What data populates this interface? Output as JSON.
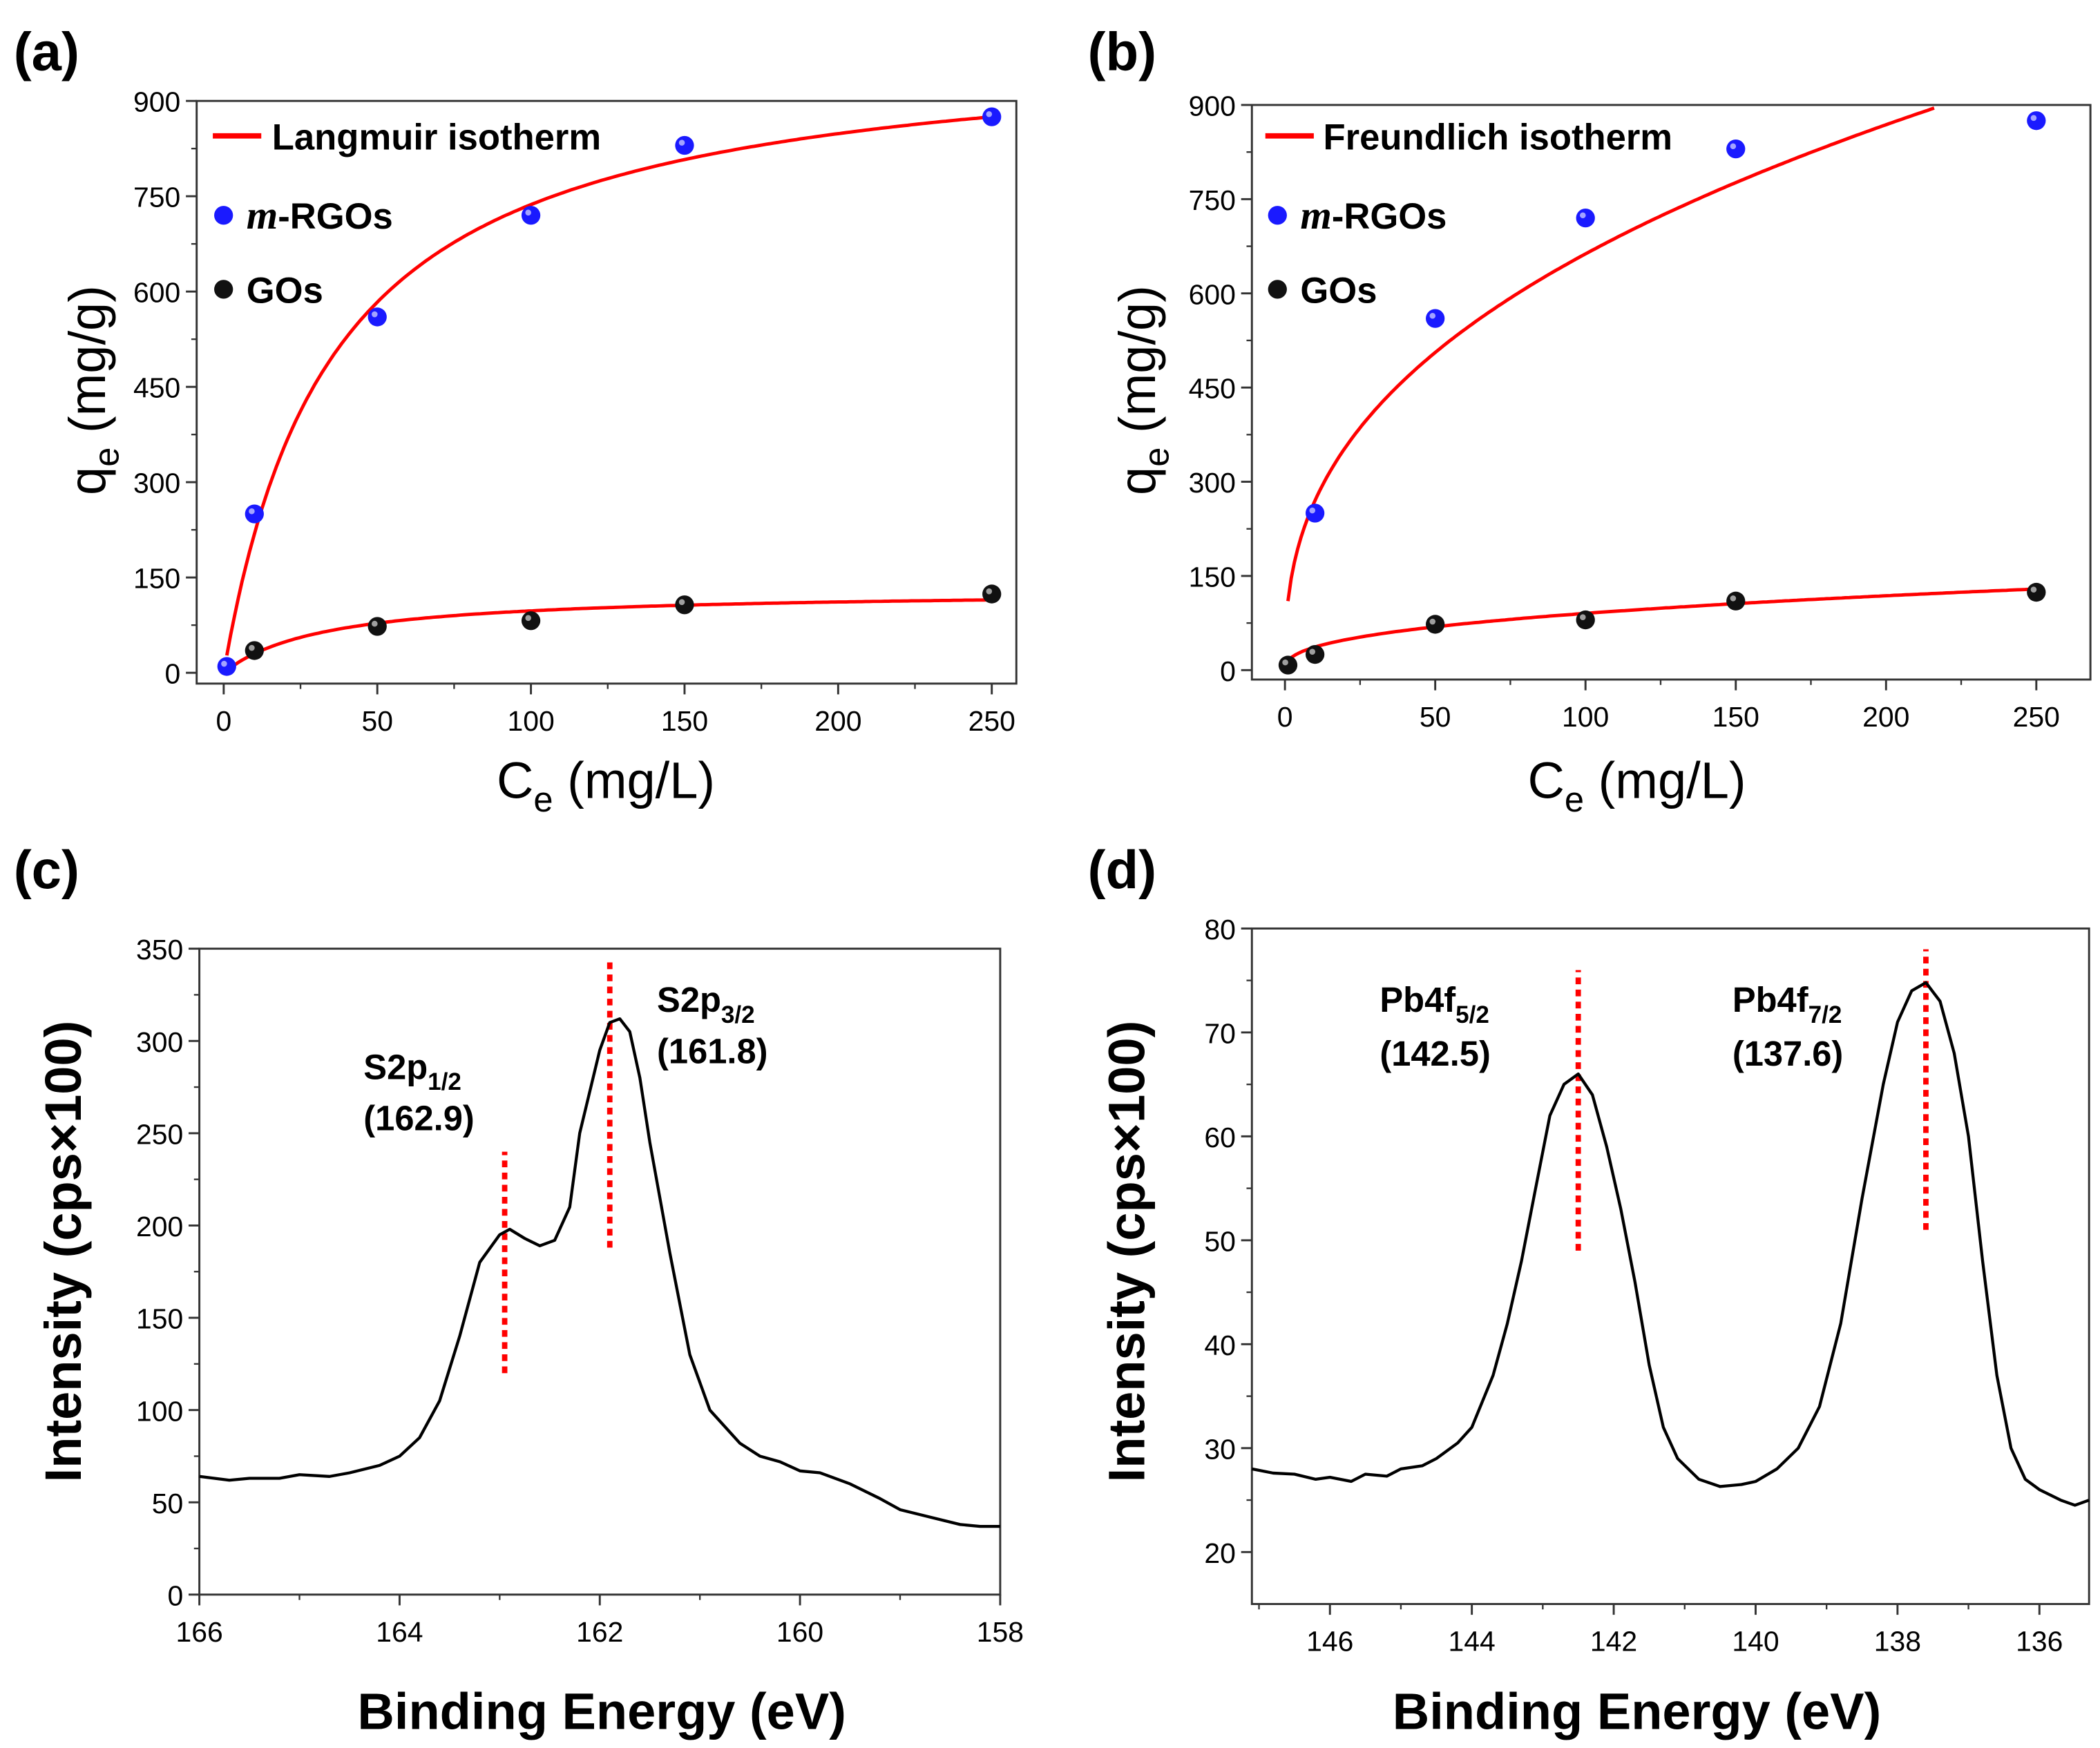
{
  "colors": {
    "fit": "#ff0000",
    "mrgo": "#1a1aff",
    "go": "#111111",
    "spectrum": "#000000",
    "peak_marker": "#ff0000"
  },
  "chart_data": [
    {
      "panel_label": "(a)",
      "type": "scatter",
      "xlabel_main": "C",
      "xlabel_sub": "e",
      "xlabel_rest": " (mg/L)",
      "ylabel_main": "q",
      "ylabel_sub": "e",
      "ylabel_rest": " (mg/g)",
      "xlim": [
        -8.8,
        258
      ],
      "ylim": [
        -17,
        900
      ],
      "xticks": [
        0,
        50,
        100,
        150,
        200,
        250
      ],
      "yticks": [
        0,
        150,
        300,
        450,
        600,
        750,
        900
      ],
      "legend": {
        "fit": "Langmuir isotherm",
        "mrgo_italic": "m",
        "mrgo_rest": "-RGOs",
        "go": "GOs",
        "position": "top-left"
      },
      "series": [
        {
          "name": "m-RGOs",
          "color": "#1a1aff",
          "x": [
            1,
            10,
            50,
            100,
            150,
            250
          ],
          "y": [
            10,
            250,
            560,
            720,
            830,
            875
          ],
          "fit": {
            "model": "langmuir",
            "qm": 1000,
            "K": 0.028,
            "xrange": [
              1,
              250
            ]
          }
        },
        {
          "name": "GOs",
          "color": "#111111",
          "x": [
            10,
            50,
            100,
            150,
            250
          ],
          "y": [
            35,
            73,
            82,
            107,
            124
          ],
          "fit": {
            "model": "langmuir",
            "qm": 130,
            "K": 0.03,
            "xrange": [
              1,
              250
            ]
          }
        }
      ]
    },
    {
      "panel_label": "(b)",
      "type": "scatter",
      "xlabel_main": "C",
      "xlabel_sub": "e",
      "xlabel_rest": " (mg/L)",
      "ylabel_main": "q",
      "ylabel_sub": "e",
      "ylabel_rest": " (mg/g)",
      "xlim": [
        -11,
        268
      ],
      "ylim": [
        -15,
        900
      ],
      "xticks": [
        0,
        50,
        100,
        150,
        200,
        250
      ],
      "yticks": [
        0,
        150,
        300,
        450,
        600,
        750,
        900
      ],
      "legend": {
        "fit": "Freundlich isotherm",
        "mrgo_italic": "m",
        "mrgo_rest": "-RGOs",
        "go": "GOs",
        "position": "top-left"
      },
      "series": [
        {
          "name": "m-RGOs",
          "color": "#1a1aff",
          "x": [
            10,
            50,
            100,
            150,
            250
          ],
          "y": [
            250,
            560,
            720,
            830,
            875
          ],
          "fit": {
            "model": "freundlich",
            "K": 110,
            "inv_n": 0.39,
            "xrange": [
              1,
              216
            ]
          }
        },
        {
          "name": "GOs",
          "color": "#111111",
          "x": [
            1,
            10,
            50,
            100,
            150,
            250
          ],
          "y": [
            8,
            25,
            73,
            80,
            110,
            124
          ],
          "fit": {
            "model": "freundlich",
            "K": 15,
            "inv_n": 0.39,
            "xrange": [
              1,
              250
            ]
          }
        }
      ]
    },
    {
      "panel_label": "(c)",
      "type": "line",
      "xlabel": "Binding Energy (eV)",
      "ylabel": "Intensity (cps×100)",
      "xlim": [
        166,
        158
      ],
      "ylim": [
        0,
        350
      ],
      "xticks": [
        166,
        164,
        162,
        160,
        158
      ],
      "yticks": [
        0,
        50,
        100,
        150,
        200,
        250,
        300,
        350
      ],
      "series": [
        {
          "name": "S2p",
          "x": [
            166,
            165.7,
            165.5,
            165.2,
            165,
            164.7,
            164.5,
            164.2,
            164,
            163.8,
            163.6,
            163.4,
            163.2,
            163.0,
            162.9,
            162.75,
            162.6,
            162.45,
            162.3,
            162.2,
            162.0,
            161.9,
            161.8,
            161.7,
            161.6,
            161.5,
            161.3,
            161.1,
            160.9,
            160.6,
            160.4,
            160.2,
            160,
            159.8,
            159.5,
            159.2,
            159,
            158.7,
            158.4,
            158.2,
            158
          ],
          "y": [
            64,
            62,
            63,
            63,
            65,
            64,
            66,
            70,
            75,
            85,
            105,
            140,
            180,
            195,
            198,
            193,
            189,
            192,
            210,
            250,
            295,
            310,
            312,
            305,
            280,
            245,
            185,
            130,
            100,
            82,
            75,
            72,
            67,
            66,
            60,
            52,
            46,
            42,
            38,
            37,
            37
          ]
        }
      ],
      "annotations": [
        {
          "label": "S2p",
          "sub": "1/2",
          "value": "(162.9)",
          "x": 162.95,
          "y_from": 120,
          "y_to": 240
        },
        {
          "label": "S2p",
          "sub": "3/2",
          "value": "(161.8)",
          "x": 161.9,
          "y_from": 188,
          "y_to": 345
        }
      ]
    },
    {
      "panel_label": "(d)",
      "type": "line",
      "xlabel": "Binding Energy (eV)",
      "ylabel": "Intensity (cps×100)",
      "xlim": [
        147.1,
        135.3
      ],
      "ylim": [
        15,
        80
      ],
      "xticks": [
        146,
        144,
        142,
        140,
        138,
        136
      ],
      "yticks": [
        20,
        30,
        40,
        50,
        60,
        70,
        80
      ],
      "series": [
        {
          "name": "Pb4f",
          "x": [
            147.1,
            146.8,
            146.5,
            146.2,
            146,
            145.7,
            145.5,
            145.2,
            145,
            144.7,
            144.5,
            144.2,
            144,
            143.7,
            143.5,
            143.3,
            143.1,
            142.9,
            142.7,
            142.5,
            142.3,
            142.1,
            141.9,
            141.7,
            141.5,
            141.3,
            141.1,
            140.8,
            140.5,
            140.2,
            140,
            139.7,
            139.4,
            139.1,
            138.8,
            138.5,
            138.2,
            138,
            137.8,
            137.6,
            137.4,
            137.2,
            137,
            136.8,
            136.6,
            136.4,
            136.2,
            136,
            135.7,
            135.5,
            135.3
          ],
          "y": [
            28,
            27.6,
            27.5,
            27,
            27.2,
            26.8,
            27.5,
            27.3,
            28,
            28.3,
            29,
            30.5,
            32,
            37,
            42,
            48,
            55,
            62,
            65,
            66,
            64,
            59,
            53,
            46,
            38,
            32,
            29,
            27,
            26.3,
            26.5,
            26.8,
            28,
            30,
            34,
            42,
            54,
            65,
            71,
            74,
            74.8,
            73,
            68,
            60,
            48,
            37,
            30,
            27,
            26,
            25,
            24.5,
            25
          ]
        }
      ],
      "annotations": [
        {
          "label": "Pb4f",
          "sub": "5/2",
          "value": "(142.5)",
          "x": 142.5,
          "y_from": 49,
          "y_to": 76
        },
        {
          "label": "Pb4f",
          "sub": "7/2",
          "value": "(137.6)",
          "x": 137.6,
          "y_from": 51,
          "y_to": 78
        }
      ]
    }
  ]
}
